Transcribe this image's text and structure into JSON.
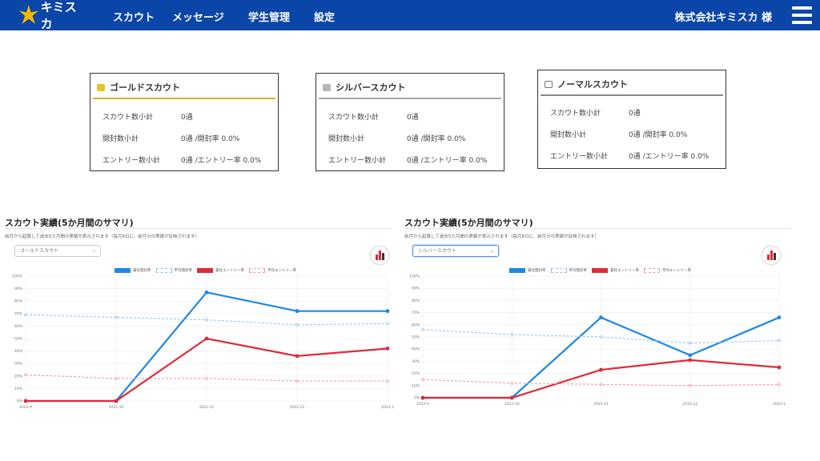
{
  "header": {
    "logo_text": "キミスカ",
    "nav": [
      "スカウト",
      "メッセージ",
      "学生管理",
      "設定"
    ],
    "company": "株式会社キミスカ 様",
    "colors": {
      "bar": "#0a45a8",
      "star": "#f5b800"
    }
  },
  "cards": [
    {
      "title": "ゴールドスカウト",
      "icon": "envelope-icon",
      "color": "#d4b21f",
      "rows": [
        {
          "label": "スカウト数小計",
          "value": "0通"
        },
        {
          "label": "開封数小計",
          "value": "0通 /開封率 0.0%"
        },
        {
          "label": "エントリー数小計",
          "value": "0通 /エントリー率 0.0%"
        }
      ]
    },
    {
      "title": "シルバースカウト",
      "icon": "envelope-icon",
      "color": "#a7a7a7",
      "rows": [
        {
          "label": "スカウト数小計",
          "value": "0通"
        },
        {
          "label": "開封数小計",
          "value": "0通 /開封率 0.0%"
        },
        {
          "label": "エントリー数小計",
          "value": "0通 /エントリー率 0.0%"
        }
      ]
    },
    {
      "title": "ノーマルスカウト",
      "icon": "envelope-icon",
      "color": "#888888",
      "rows": [
        {
          "label": "スカウト数小計",
          "value": "0通"
        },
        {
          "label": "開封数小計",
          "value": "0通 /開封率 0.0%"
        },
        {
          "label": "エントリー数小計",
          "value": "0通 /エントリー率 0.0%"
        }
      ]
    }
  ],
  "sections": [
    {
      "title": "スカウト実績(5か月間のサマリ)",
      "description": "前月から起算して過去5カ月間の実績が表示されます（毎月8日に、前月分の実績が反映されます）",
      "select_value": "ゴールドスカウト"
    },
    {
      "title": "スカウト実績(5か月間のサマリ)",
      "description": "前月から起算して過去5カ月間の実績が表示されます（毎月8日に、前月分の実績が反映されます）",
      "select_value": "シルバースカウト"
    }
  ],
  "chart_data": [
    {
      "type": "line",
      "x": [
        "2022-9",
        "2022-10",
        "2022-11",
        "2022-12",
        "2023-1"
      ],
      "ylim": [
        0,
        100
      ],
      "yticks": [
        "0%",
        "10%",
        "20%",
        "30%",
        "40%",
        "50%",
        "60%",
        "70%",
        "80%",
        "90%",
        "100%"
      ],
      "legend_position": "top",
      "grid": true,
      "series": [
        {
          "name": "貴社開封率",
          "color": "#1e88e5",
          "dashed": false,
          "values": [
            0,
            0,
            87,
            72,
            72
          ]
        },
        {
          "name": "平均開封率",
          "color": "#90c2f0",
          "dashed": true,
          "values": [
            69,
            67,
            65,
            61,
            62
          ]
        },
        {
          "name": "貴社エントリー率",
          "color": "#e02a36",
          "dashed": false,
          "values": [
            0,
            0,
            50,
            36,
            42
          ]
        },
        {
          "name": "平均エントリー率",
          "color": "#f09a9f",
          "dashed": true,
          "values": [
            21,
            18,
            18,
            16,
            16
          ]
        }
      ]
    },
    {
      "type": "line",
      "x": [
        "2022-9",
        "2022-10",
        "2022-11",
        "2022-12",
        "2023-1"
      ],
      "ylim": [
        0,
        100
      ],
      "yticks": [
        "0%",
        "10%",
        "20%",
        "30%",
        "40%",
        "50%",
        "60%",
        "70%",
        "80%",
        "90%",
        "100%"
      ],
      "legend_position": "top",
      "grid": true,
      "series": [
        {
          "name": "貴社開封率",
          "color": "#1e88e5",
          "dashed": false,
          "values": [
            0,
            0,
            66,
            35,
            66
          ]
        },
        {
          "name": "平均開封率",
          "color": "#90c2f0",
          "dashed": true,
          "values": [
            56,
            52,
            50,
            45,
            47
          ]
        },
        {
          "name": "貴社エントリー率",
          "color": "#e02a36",
          "dashed": false,
          "values": [
            0,
            0,
            23,
            31,
            25
          ]
        },
        {
          "name": "平均エントリー率",
          "color": "#f09a9f",
          "dashed": true,
          "values": [
            15,
            12,
            11,
            10,
            11
          ]
        }
      ]
    }
  ]
}
